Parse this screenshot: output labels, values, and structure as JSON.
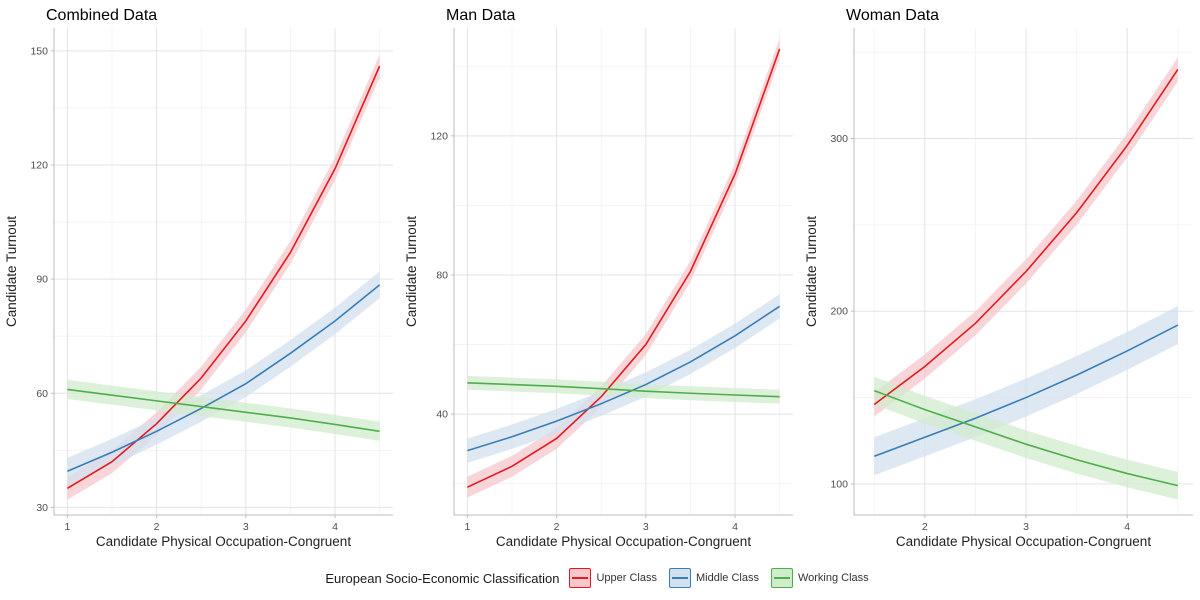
{
  "legend": {
    "title": "European Socio-Economic Classification",
    "items": [
      {
        "label": "Upper Class",
        "color": "#e41a1c",
        "fill": "#f6c7cc"
      },
      {
        "label": "Middle Class",
        "color": "#377eb8",
        "fill": "#d3e0ee"
      },
      {
        "label": "Working Class",
        "color": "#4daf4a",
        "fill": "#d1ebcd"
      }
    ]
  },
  "chart_data": [
    {
      "type": "line",
      "title": "Combined Data",
      "xlabel": "Candidate Physical Occupation-Congruent",
      "ylabel": "Candidate Turnout",
      "xlim": [
        0.85,
        4.65
      ],
      "ylim": [
        28,
        156
      ],
      "xticks": [
        1,
        2,
        3,
        4
      ],
      "yticks": [
        30,
        60,
        90,
        120,
        150
      ],
      "x": [
        1,
        1.5,
        2,
        2.5,
        3,
        3.5,
        4,
        4.5
      ],
      "series": [
        {
          "name": "Upper Class",
          "values": [
            35,
            42,
            52,
            64,
            79,
            97,
            119,
            146
          ],
          "ci": 3
        },
        {
          "name": "Middle Class",
          "values": [
            39.5,
            44.5,
            50,
            56,
            62.5,
            70.5,
            79,
            88.5
          ],
          "ci": 3.5
        },
        {
          "name": "Working Class",
          "values": [
            61,
            59.5,
            58,
            56.5,
            55,
            53.5,
            51.8,
            50
          ],
          "ci": 2.5
        }
      ],
      "grid": true
    },
    {
      "type": "line",
      "title": "Man Data",
      "xlabel": "Candidate Physical Occupation-Congruent",
      "ylabel": "Candidate Turnout",
      "xlim": [
        0.85,
        4.65
      ],
      "ylim": [
        11,
        151
      ],
      "xticks": [
        1,
        2,
        3,
        4
      ],
      "yticks": [
        40,
        80,
        120
      ],
      "x": [
        1,
        1.5,
        2,
        2.5,
        3,
        3.5,
        4,
        4.5
      ],
      "series": [
        {
          "name": "Upper Class",
          "values": [
            19,
            25,
            33,
            45,
            60,
            81,
            109,
            145
          ],
          "ci": 3
        },
        {
          "name": "Middle Class",
          "values": [
            29.5,
            33.5,
            38,
            43,
            48.5,
            55,
            62.5,
            71
          ],
          "ci": 3.5
        },
        {
          "name": "Working Class",
          "values": [
            49,
            48.5,
            48,
            47.3,
            46.6,
            46,
            45.5,
            45
          ],
          "ci": 2
        }
      ],
      "grid": true
    },
    {
      "type": "line",
      "title": "Woman Data",
      "xlabel": "Candidate Physical Occupation-Congruent",
      "ylabel": "Candidate Turnout",
      "xlim": [
        1.3,
        4.65
      ],
      "ylim": [
        82,
        364
      ],
      "xticks": [
        2,
        3,
        4
      ],
      "yticks": [
        100,
        200,
        300
      ],
      "x": [
        1.5,
        2,
        2.5,
        3,
        3.5,
        4,
        4.5
      ],
      "series": [
        {
          "name": "Upper Class",
          "values": [
            146,
            168,
            193,
            223,
            257,
            296,
            340
          ],
          "ci": 7
        },
        {
          "name": "Middle Class",
          "values": [
            116,
            127,
            138,
            150,
            163,
            177,
            192
          ],
          "ci": 11
        },
        {
          "name": "Working Class",
          "values": [
            154,
            143,
            133,
            123,
            114,
            106,
            99
          ],
          "ci": 8
        }
      ],
      "grid": true
    }
  ]
}
